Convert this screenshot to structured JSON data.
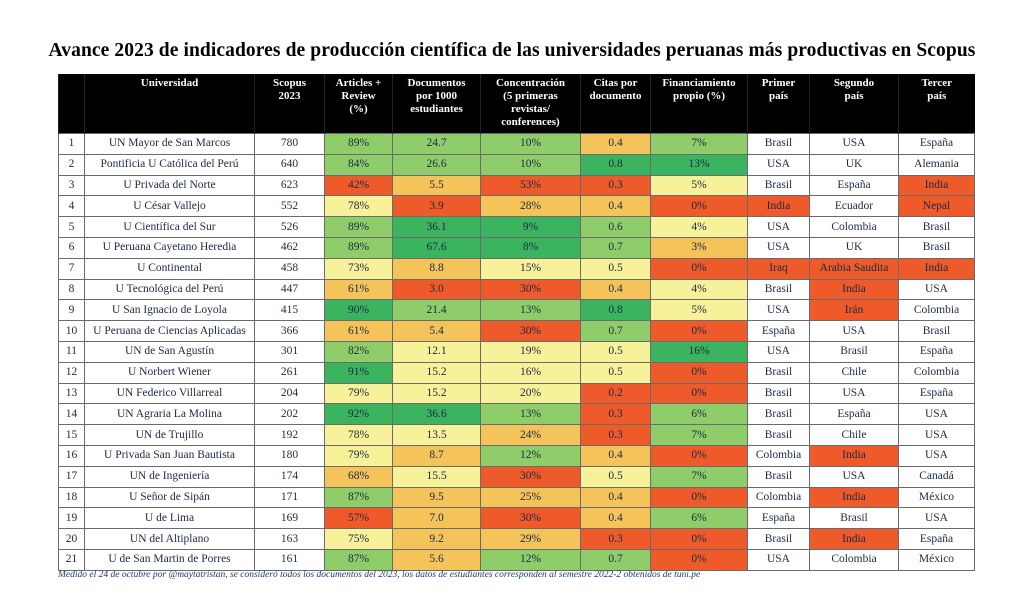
{
  "title": "Avance 2023 de indicadores de producción científica de las universidades peruanas más productivas en Scopus",
  "headers": {
    "universidad": "Universidad",
    "scopus_l1": "Scopus",
    "scopus_l2": "2023",
    "articles_l1": "Articles +",
    "articles_l2": "Review",
    "articles_l3": "(%)",
    "docs_l1": "Documentos",
    "docs_l2": "por 1000",
    "docs_l3": "estudiantes",
    "conc_l1": "Concentración",
    "conc_l2": "(5 primeras",
    "conc_l3": "revistas/",
    "conc_l4": "conferences)",
    "citas_l1": "Citas por",
    "citas_l2": "documento",
    "fin_l1": "Financiamiento",
    "fin_l2": "propio (%)",
    "p1_l1": "Primer",
    "p1_l2": "país",
    "p2_l1": "Segundo",
    "p2_l2": "país",
    "p3_l1": "Tercer",
    "p3_l2": "país"
  },
  "rows": [
    {
      "n": "1",
      "u": "UN Mayor de San Marcos",
      "s": "780",
      "a": "89%",
      "d": "24.7",
      "c": "10%",
      "ci": "0.4",
      "f": "7%",
      "p1": "Brasil",
      "p2": "USA",
      "p3": "España",
      "ca": "lgreen",
      "cd": "lgreen",
      "cc": "lgreen",
      "cci": "orange",
      "cf": "lgreen",
      "cp1": "white",
      "cp2": "white",
      "cp3": "white"
    },
    {
      "n": "2",
      "u": "Pontificia U Católica del Perú",
      "s": "640",
      "a": "84%",
      "d": "26.6",
      "c": "10%",
      "ci": "0.8",
      "f": "13%",
      "p1": "USA",
      "p2": "UK",
      "p3": "Alemania",
      "ca": "lgreen",
      "cd": "lgreen",
      "cc": "lgreen",
      "cci": "green",
      "cf": "green",
      "cp1": "white",
      "cp2": "white",
      "cp3": "white"
    },
    {
      "n": "3",
      "u": "U Privada del Norte",
      "s": "623",
      "a": "42%",
      "d": "5.5",
      "c": "53%",
      "ci": "0.3",
      "f": "5%",
      "p1": "Brasil",
      "p2": "España",
      "p3": "India",
      "ca": "red",
      "cd": "orange",
      "cc": "red",
      "cci": "red",
      "cf": "paleyellow",
      "cp1": "white",
      "cp2": "white",
      "cp3": "red"
    },
    {
      "n": "4",
      "u": "U César Vallejo",
      "s": "552",
      "a": "78%",
      "d": "3.9",
      "c": "28%",
      "ci": "0.4",
      "f": "0%",
      "p1": "India",
      "p2": "Ecuador",
      "p3": "Nepal",
      "ca": "paleyellow",
      "cd": "red",
      "cc": "orange",
      "cci": "orange",
      "cf": "red",
      "cp1": "red",
      "cp2": "white",
      "cp3": "red"
    },
    {
      "n": "5",
      "u": "U Científica del Sur",
      "s": "526",
      "a": "89%",
      "d": "36.1",
      "c": "9%",
      "ci": "0.6",
      "f": "4%",
      "p1": "USA",
      "p2": "Colombia",
      "p3": "Brasil",
      "ca": "lgreen",
      "cd": "green",
      "cc": "green",
      "cci": "lgreen",
      "cf": "paleyellow",
      "cp1": "white",
      "cp2": "white",
      "cp3": "white"
    },
    {
      "n": "6",
      "u": "U Peruana Cayetano Heredia",
      "s": "462",
      "a": "89%",
      "d": "67.6",
      "c": "8%",
      "ci": "0.7",
      "f": "3%",
      "p1": "USA",
      "p2": "UK",
      "p3": "Brasil",
      "ca": "lgreen",
      "cd": "green",
      "cc": "green",
      "cci": "lgreen",
      "cf": "orange",
      "cp1": "white",
      "cp2": "white",
      "cp3": "white"
    },
    {
      "n": "7",
      "u": "U Continental",
      "s": "458",
      "a": "73%",
      "d": "8.8",
      "c": "15%",
      "ci": "0.5",
      "f": "0%",
      "p1": "Iraq",
      "p2": "Arabia Saudita",
      "p3": "India",
      "ca": "paleyellow",
      "cd": "orange",
      "cc": "paleyellow",
      "cci": "paleyellow",
      "cf": "red",
      "cp1": "red",
      "cp2": "red",
      "cp3": "red"
    },
    {
      "n": "8",
      "u": "U Tecnológica del Perú",
      "s": "447",
      "a": "61%",
      "d": "3.0",
      "c": "30%",
      "ci": "0.4",
      "f": "4%",
      "p1": "Brasil",
      "p2": "India",
      "p3": "USA",
      "ca": "orange",
      "cd": "red",
      "cc": "red",
      "cci": "orange",
      "cf": "paleyellow",
      "cp1": "white",
      "cp2": "red",
      "cp3": "white"
    },
    {
      "n": "9",
      "u": "U San Ignacio de Loyola",
      "s": "415",
      "a": "90%",
      "d": "21.4",
      "c": "13%",
      "ci": "0.8",
      "f": "5%",
      "p1": "USA",
      "p2": "Irán",
      "p3": "Colombia",
      "ca": "green",
      "cd": "lgreen",
      "cc": "lgreen",
      "cci": "green",
      "cf": "paleyellow",
      "cp1": "white",
      "cp2": "red",
      "cp3": "white"
    },
    {
      "n": "10",
      "u": "U Peruana de Ciencias Aplicadas",
      "s": "366",
      "a": "61%",
      "d": "5.4",
      "c": "30%",
      "ci": "0.7",
      "f": "0%",
      "p1": "España",
      "p2": "USA",
      "p3": "Brasil",
      "ca": "orange",
      "cd": "orange",
      "cc": "red",
      "cci": "lgreen",
      "cf": "red",
      "cp1": "white",
      "cp2": "white",
      "cp3": "white"
    },
    {
      "n": "11",
      "u": "UN de San Agustín",
      "s": "301",
      "a": "82%",
      "d": "12.1",
      "c": "19%",
      "ci": "0.5",
      "f": "16%",
      "p1": "USA",
      "p2": "Brasil",
      "p3": "España",
      "ca": "lgreen",
      "cd": "paleyellow",
      "cc": "paleyellow",
      "cci": "paleyellow",
      "cf": "green",
      "cp1": "white",
      "cp2": "white",
      "cp3": "white"
    },
    {
      "n": "12",
      "u": "U Norbert Wiener",
      "s": "261",
      "a": "91%",
      "d": "15.2",
      "c": "16%",
      "ci": "0.5",
      "f": "0%",
      "p1": "Brasil",
      "p2": "Chile",
      "p3": "Colombia",
      "ca": "green",
      "cd": "paleyellow",
      "cc": "paleyellow",
      "cci": "paleyellow",
      "cf": "red",
      "cp1": "white",
      "cp2": "white",
      "cp3": "white"
    },
    {
      "n": "13",
      "u": "UN Federico Villarreal",
      "s": "204",
      "a": "79%",
      "d": "15.2",
      "c": "20%",
      "ci": "0.2",
      "f": "0%",
      "p1": "Brasil",
      "p2": "USA",
      "p3": "España",
      "ca": "paleyellow",
      "cd": "paleyellow",
      "cc": "paleyellow",
      "cci": "red",
      "cf": "red",
      "cp1": "white",
      "cp2": "white",
      "cp3": "white"
    },
    {
      "n": "14",
      "u": "UN Agraria La Molina",
      "s": "202",
      "a": "92%",
      "d": "36.6",
      "c": "13%",
      "ci": "0.3",
      "f": "6%",
      "p1": "Brasil",
      "p2": "España",
      "p3": "USA",
      "ca": "green",
      "cd": "green",
      "cc": "lgreen",
      "cci": "red",
      "cf": "lgreen",
      "cp1": "white",
      "cp2": "white",
      "cp3": "white"
    },
    {
      "n": "15",
      "u": "UN de Trujillo",
      "s": "192",
      "a": "78%",
      "d": "13.5",
      "c": "24%",
      "ci": "0.3",
      "f": "7%",
      "p1": "Brasil",
      "p2": "Chile",
      "p3": "USA",
      "ca": "paleyellow",
      "cd": "paleyellow",
      "cc": "orange",
      "cci": "red",
      "cf": "lgreen",
      "cp1": "white",
      "cp2": "white",
      "cp3": "white"
    },
    {
      "n": "16",
      "u": "U Privada San Juan Bautista",
      "s": "180",
      "a": "79%",
      "d": "8.7",
      "c": "12%",
      "ci": "0.4",
      "f": "0%",
      "p1": "Colombia",
      "p2": "India",
      "p3": "USA",
      "ca": "paleyellow",
      "cd": "orange",
      "cc": "lgreen",
      "cci": "orange",
      "cf": "red",
      "cp1": "white",
      "cp2": "red",
      "cp3": "white"
    },
    {
      "n": "17",
      "u": "UN de Ingeniería",
      "s": "174",
      "a": "68%",
      "d": "15.5",
      "c": "30%",
      "ci": "0.5",
      "f": "7%",
      "p1": "Brasil",
      "p2": "USA",
      "p3": "Canadá",
      "ca": "orange",
      "cd": "paleyellow",
      "cc": "red",
      "cci": "paleyellow",
      "cf": "lgreen",
      "cp1": "white",
      "cp2": "white",
      "cp3": "white"
    },
    {
      "n": "18",
      "u": "U Señor de Sipán",
      "s": "171",
      "a": "87%",
      "d": "9.5",
      "c": "25%",
      "ci": "0.4",
      "f": "0%",
      "p1": "Colombia",
      "p2": "India",
      "p3": "México",
      "ca": "lgreen",
      "cd": "orange",
      "cc": "orange",
      "cci": "orange",
      "cf": "red",
      "cp1": "white",
      "cp2": "red",
      "cp3": "white"
    },
    {
      "n": "19",
      "u": "U de Lima",
      "s": "169",
      "a": "57%",
      "d": "7.0",
      "c": "30%",
      "ci": "0.4",
      "f": "6%",
      "p1": "España",
      "p2": "Brasil",
      "p3": "USA",
      "ca": "red",
      "cd": "orange",
      "cc": "red",
      "cci": "orange",
      "cf": "lgreen",
      "cp1": "white",
      "cp2": "white",
      "cp3": "white"
    },
    {
      "n": "20",
      "u": "UN del Altiplano",
      "s": "163",
      "a": "75%",
      "d": "9.2",
      "c": "29%",
      "ci": "0.3",
      "f": "0%",
      "p1": "Brasil",
      "p2": "India",
      "p3": "España",
      "ca": "paleyellow",
      "cd": "orange",
      "cc": "orange",
      "cci": "red",
      "cf": "red",
      "cp1": "white",
      "cp2": "red",
      "cp3": "white"
    },
    {
      "n": "21",
      "u": "U de San Martin de Porres",
      "s": "161",
      "a": "87%",
      "d": "5.6",
      "c": "12%",
      "ci": "0.7",
      "f": "0%",
      "p1": "USA",
      "p2": "Colombia",
      "p3": "México",
      "ca": "lgreen",
      "cd": "orange",
      "cc": "lgreen",
      "cci": "lgreen",
      "cf": "red",
      "cp1": "white",
      "cp2": "white",
      "cp3": "white"
    }
  ],
  "footnote": "Medido el 24 de octubre por @maytatristan, se consideró todos los documentos del 2023, los datos de estudiantes corresponden al semestre 2022-2 obtenidos de tuni.pe",
  "colors": {
    "green": "#3cb45f",
    "light_green": "#8fcd6b",
    "yellow": "#f7f19a",
    "orange": "#f4c45b",
    "red": "#ee5a2a",
    "header_bg": "#000000"
  }
}
